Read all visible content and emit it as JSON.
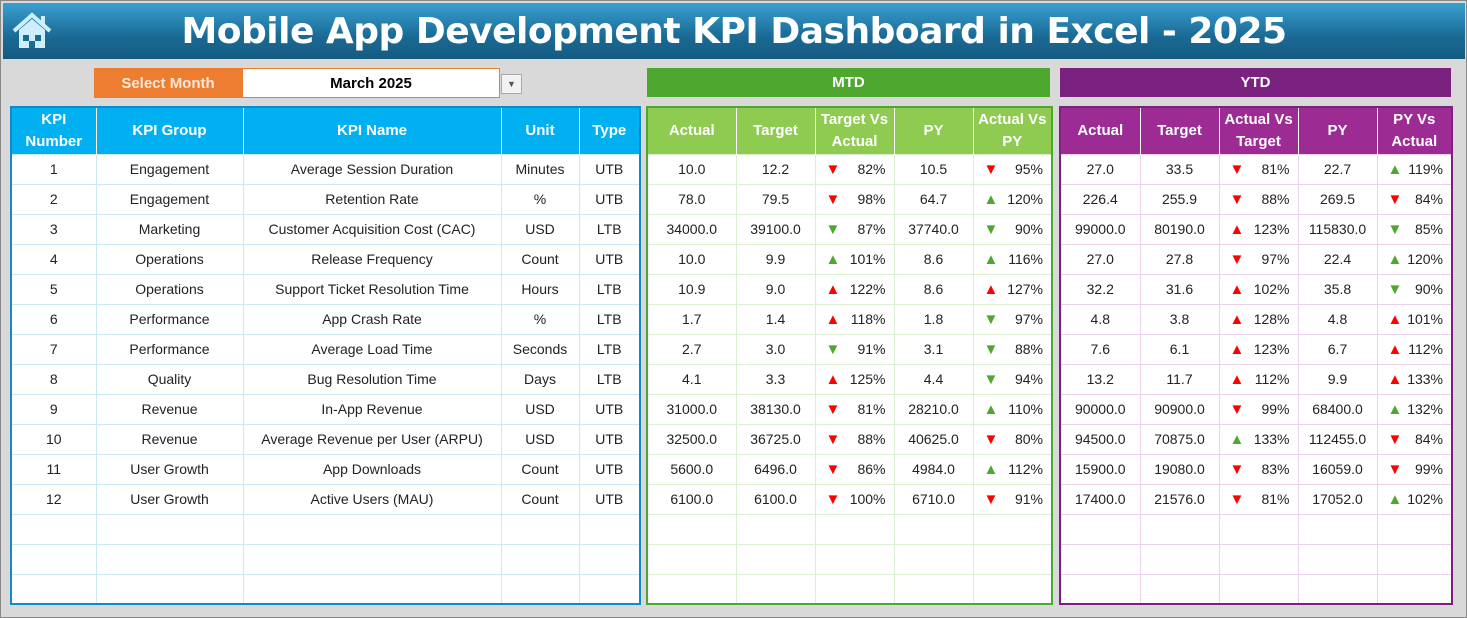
{
  "header": {
    "title": "Mobile App Development KPI Dashboard in Excel - 2025",
    "icon": "home-icon"
  },
  "selector": {
    "label": "Select Month",
    "value": "March 2025"
  },
  "sections": {
    "mtd": "MTD",
    "ytd": "YTD"
  },
  "colors": {
    "up_green": "#4ea72e",
    "red": "#ff0000",
    "left_header": "#00b0f0",
    "mtd_header": "#8fcb50",
    "ytd_header": "#9c2b94"
  },
  "left_columns": [
    "KPI Number",
    "KPI Group",
    "KPI Name",
    "Unit",
    "Type"
  ],
  "mtd_columns": [
    "Actual",
    "Target",
    "Target Vs Actual",
    "PY",
    "Actual Vs PY"
  ],
  "ytd_columns": [
    "Actual",
    "Target",
    "Actual Vs Target",
    "PY",
    "PY Vs Actual"
  ],
  "rows": [
    {
      "num": "1",
      "group": "Engagement",
      "name": "Average Session Duration",
      "unit": "Minutes",
      "type": "UTB",
      "mtd": {
        "actual": "10.0",
        "target": "12.2",
        "tva": {
          "pct": "82%",
          "dir": "down",
          "color": "red"
        },
        "py": "10.5",
        "avp": {
          "pct": "95%",
          "dir": "down",
          "color": "red"
        }
      },
      "ytd": {
        "actual": "27.0",
        "target": "33.5",
        "avt": {
          "pct": "81%",
          "dir": "down",
          "color": "red"
        },
        "py": "22.7",
        "pva": {
          "pct": "119%",
          "dir": "up",
          "color": "green"
        }
      }
    },
    {
      "num": "2",
      "group": "Engagement",
      "name": "Retention Rate",
      "unit": "%",
      "type": "UTB",
      "mtd": {
        "actual": "78.0",
        "target": "79.5",
        "tva": {
          "pct": "98%",
          "dir": "down",
          "color": "red"
        },
        "py": "64.7",
        "avp": {
          "pct": "120%",
          "dir": "up",
          "color": "green"
        }
      },
      "ytd": {
        "actual": "226.4",
        "target": "255.9",
        "avt": {
          "pct": "88%",
          "dir": "down",
          "color": "red"
        },
        "py": "269.5",
        "pva": {
          "pct": "84%",
          "dir": "down",
          "color": "red"
        }
      }
    },
    {
      "num": "3",
      "group": "Marketing",
      "name": "Customer Acquisition Cost (CAC)",
      "unit": "USD",
      "type": "LTB",
      "mtd": {
        "actual": "34000.0",
        "target": "39100.0",
        "tva": {
          "pct": "87%",
          "dir": "down",
          "color": "green"
        },
        "py": "37740.0",
        "avp": {
          "pct": "90%",
          "dir": "down",
          "color": "green"
        }
      },
      "ytd": {
        "actual": "99000.0",
        "target": "80190.0",
        "avt": {
          "pct": "123%",
          "dir": "up",
          "color": "red"
        },
        "py": "115830.0",
        "pva": {
          "pct": "85%",
          "dir": "down",
          "color": "green"
        }
      }
    },
    {
      "num": "4",
      "group": "Operations",
      "name": "Release Frequency",
      "unit": "Count",
      "type": "UTB",
      "mtd": {
        "actual": "10.0",
        "target": "9.9",
        "tva": {
          "pct": "101%",
          "dir": "up",
          "color": "green"
        },
        "py": "8.6",
        "avp": {
          "pct": "116%",
          "dir": "up",
          "color": "green"
        }
      },
      "ytd": {
        "actual": "27.0",
        "target": "27.8",
        "avt": {
          "pct": "97%",
          "dir": "down",
          "color": "red"
        },
        "py": "22.4",
        "pva": {
          "pct": "120%",
          "dir": "up",
          "color": "green"
        }
      }
    },
    {
      "num": "5",
      "group": "Operations",
      "name": "Support Ticket Resolution Time",
      "unit": "Hours",
      "type": "LTB",
      "mtd": {
        "actual": "10.9",
        "target": "9.0",
        "tva": {
          "pct": "122%",
          "dir": "up",
          "color": "red"
        },
        "py": "8.6",
        "avp": {
          "pct": "127%",
          "dir": "up",
          "color": "red"
        }
      },
      "ytd": {
        "actual": "32.2",
        "target": "31.6",
        "avt": {
          "pct": "102%",
          "dir": "up",
          "color": "red"
        },
        "py": "35.8",
        "pva": {
          "pct": "90%",
          "dir": "down",
          "color": "green"
        }
      }
    },
    {
      "num": "6",
      "group": "Performance",
      "name": "App Crash Rate",
      "unit": "%",
      "type": "LTB",
      "mtd": {
        "actual": "1.7",
        "target": "1.4",
        "tva": {
          "pct": "118%",
          "dir": "up",
          "color": "red"
        },
        "py": "1.8",
        "avp": {
          "pct": "97%",
          "dir": "down",
          "color": "green"
        }
      },
      "ytd": {
        "actual": "4.8",
        "target": "3.8",
        "avt": {
          "pct": "128%",
          "dir": "up",
          "color": "red"
        },
        "py": "4.8",
        "pva": {
          "pct": "101%",
          "dir": "up",
          "color": "red"
        }
      }
    },
    {
      "num": "7",
      "group": "Performance",
      "name": "Average Load Time",
      "unit": "Seconds",
      "type": "LTB",
      "mtd": {
        "actual": "2.7",
        "target": "3.0",
        "tva": {
          "pct": "91%",
          "dir": "down",
          "color": "green"
        },
        "py": "3.1",
        "avp": {
          "pct": "88%",
          "dir": "down",
          "color": "green"
        }
      },
      "ytd": {
        "actual": "7.6",
        "target": "6.1",
        "avt": {
          "pct": "123%",
          "dir": "up",
          "color": "red"
        },
        "py": "6.7",
        "pva": {
          "pct": "112%",
          "dir": "up",
          "color": "red"
        }
      }
    },
    {
      "num": "8",
      "group": "Quality",
      "name": "Bug Resolution Time",
      "unit": "Days",
      "type": "LTB",
      "mtd": {
        "actual": "4.1",
        "target": "3.3",
        "tva": {
          "pct": "125%",
          "dir": "up",
          "color": "red"
        },
        "py": "4.4",
        "avp": {
          "pct": "94%",
          "dir": "down",
          "color": "green"
        }
      },
      "ytd": {
        "actual": "13.2",
        "target": "11.7",
        "avt": {
          "pct": "112%",
          "dir": "up",
          "color": "red"
        },
        "py": "9.9",
        "pva": {
          "pct": "133%",
          "dir": "up",
          "color": "red"
        }
      }
    },
    {
      "num": "9",
      "group": "Revenue",
      "name": "In-App Revenue",
      "unit": "USD",
      "type": "UTB",
      "mtd": {
        "actual": "31000.0",
        "target": "38130.0",
        "tva": {
          "pct": "81%",
          "dir": "down",
          "color": "red"
        },
        "py": "28210.0",
        "avp": {
          "pct": "110%",
          "dir": "up",
          "color": "green"
        }
      },
      "ytd": {
        "actual": "90000.0",
        "target": "90900.0",
        "avt": {
          "pct": "99%",
          "dir": "down",
          "color": "red"
        },
        "py": "68400.0",
        "pva": {
          "pct": "132%",
          "dir": "up",
          "color": "green"
        }
      }
    },
    {
      "num": "10",
      "group": "Revenue",
      "name": "Average Revenue per User (ARPU)",
      "unit": "USD",
      "type": "UTB",
      "mtd": {
        "actual": "32500.0",
        "target": "36725.0",
        "tva": {
          "pct": "88%",
          "dir": "down",
          "color": "red"
        },
        "py": "40625.0",
        "avp": {
          "pct": "80%",
          "dir": "down",
          "color": "red"
        }
      },
      "ytd": {
        "actual": "94500.0",
        "target": "70875.0",
        "avt": {
          "pct": "133%",
          "dir": "up",
          "color": "green"
        },
        "py": "112455.0",
        "pva": {
          "pct": "84%",
          "dir": "down",
          "color": "red"
        }
      }
    },
    {
      "num": "11",
      "group": "User Growth",
      "name": "App Downloads",
      "unit": "Count",
      "type": "UTB",
      "mtd": {
        "actual": "5600.0",
        "target": "6496.0",
        "tva": {
          "pct": "86%",
          "dir": "down",
          "color": "red"
        },
        "py": "4984.0",
        "avp": {
          "pct": "112%",
          "dir": "up",
          "color": "green"
        }
      },
      "ytd": {
        "actual": "15900.0",
        "target": "19080.0",
        "avt": {
          "pct": "83%",
          "dir": "down",
          "color": "red"
        },
        "py": "16059.0",
        "pva": {
          "pct": "99%",
          "dir": "down",
          "color": "red"
        }
      }
    },
    {
      "num": "12",
      "group": "User Growth",
      "name": "Active Users (MAU)",
      "unit": "Count",
      "type": "UTB",
      "mtd": {
        "actual": "6100.0",
        "target": "6100.0",
        "tva": {
          "pct": "100%",
          "dir": "down",
          "color": "red"
        },
        "py": "6710.0",
        "avp": {
          "pct": "91%",
          "dir": "down",
          "color": "red"
        }
      },
      "ytd": {
        "actual": "17400.0",
        "target": "21576.0",
        "avt": {
          "pct": "81%",
          "dir": "down",
          "color": "red"
        },
        "py": "17052.0",
        "pva": {
          "pct": "102%",
          "dir": "up",
          "color": "green"
        }
      }
    }
  ]
}
